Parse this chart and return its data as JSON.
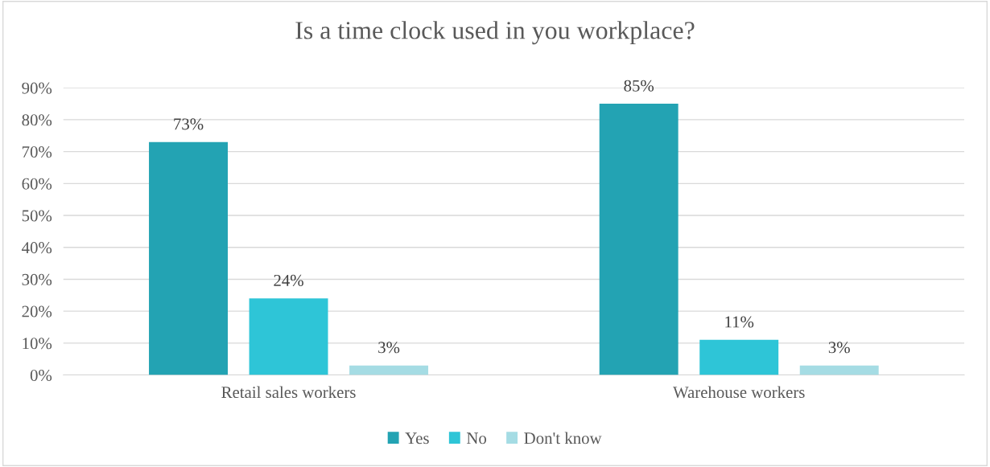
{
  "chart_data": {
    "type": "bar",
    "title": "Is a time clock used in you workplace?",
    "categories": [
      "Retail sales workers",
      "Warehouse workers"
    ],
    "series": [
      {
        "name": "Yes",
        "color": "#23a3b3",
        "values": [
          73,
          85
        ],
        "value_labels": [
          "73%",
          "85%"
        ]
      },
      {
        "name": "No",
        "color": "#2ec5d7",
        "values": [
          24,
          11
        ],
        "value_labels": [
          "24%",
          "11%"
        ]
      },
      {
        "name": "Don't know",
        "color": "#a5dce4",
        "values": [
          3,
          3
        ],
        "value_labels": [
          "3%",
          "3%"
        ]
      }
    ],
    "ylim": [
      0,
      90
    ],
    "yticks": [
      {
        "value": 0,
        "label": "0%"
      },
      {
        "value": 10,
        "label": "10%"
      },
      {
        "value": 20,
        "label": "20%"
      },
      {
        "value": 30,
        "label": "30%"
      },
      {
        "value": 40,
        "label": "40%"
      },
      {
        "value": 50,
        "label": "50%"
      },
      {
        "value": 60,
        "label": "60%"
      },
      {
        "value": 70,
        "label": "70%"
      },
      {
        "value": 80,
        "label": "80%"
      },
      {
        "value": 90,
        "label": "90%"
      }
    ],
    "grid": "y",
    "legend": "bottom"
  }
}
